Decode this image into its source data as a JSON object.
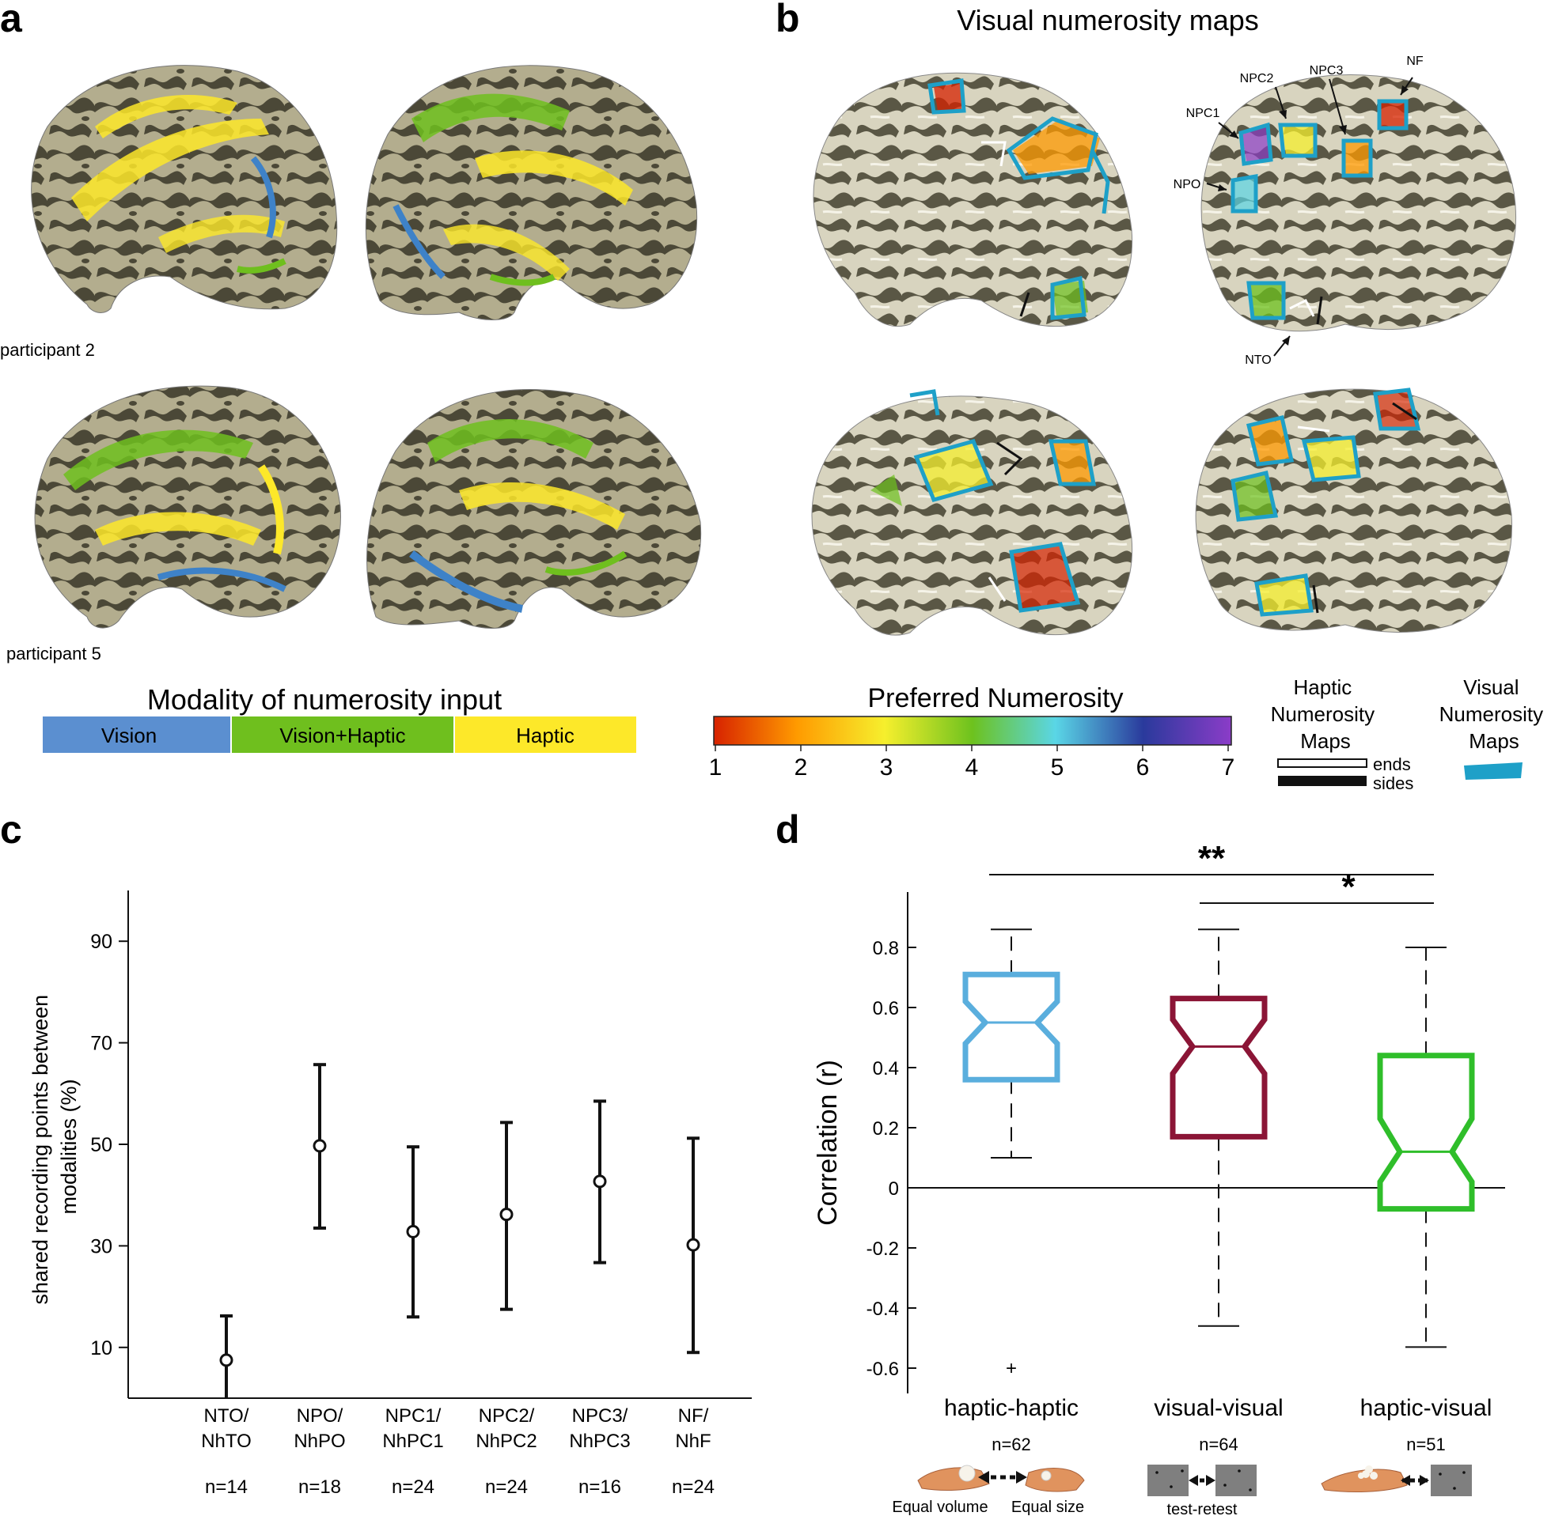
{
  "figure": {
    "panel_a": {
      "label": "a",
      "participants": [
        "participant 2",
        "participant 5"
      ],
      "legend": {
        "title": "Modality of numerosity input",
        "items": [
          {
            "label": "Vision",
            "color": "#5b8fd0"
          },
          {
            "label": "Vision+Haptic",
            "color": "#6fbf1e"
          },
          {
            "label": "Haptic",
            "color": "#fde829"
          }
        ]
      }
    },
    "panel_b": {
      "label": "b",
      "title": "Visual numerosity maps",
      "map_labels": [
        "NPC1",
        "NPC2",
        "NPC3",
        "NF",
        "NPO",
        "NTO"
      ],
      "colorbar": {
        "title": "Preferred Numerosity",
        "ticks": [
          "1",
          "2",
          "3",
          "4",
          "5",
          "6",
          "7"
        ],
        "colors": [
          "#d72200",
          "#ff9a00",
          "#f6ef2d",
          "#6dc21e",
          "#5ad6e6",
          "#2a3a9c",
          "#8b3cc8"
        ]
      },
      "haptic_legend": {
        "title": "Haptic Numerosity Maps",
        "ends": "ends",
        "sides": "sides"
      },
      "visual_legend": {
        "title": "Visual Numerosity Maps",
        "color": "#1ea0c8"
      }
    },
    "panel_c": {
      "label": "c"
    },
    "panel_d": {
      "label": "d"
    }
  },
  "chart_data": [
    {
      "panel": "c",
      "type": "scatter",
      "ylabel": "shared recording points between modalities (%)",
      "xlabel": "",
      "ylim": [
        0,
        100
      ],
      "yticks": [
        "10",
        "30",
        "50",
        "70",
        "90"
      ],
      "categories": [
        "NTO/ NhTO",
        "NPO/ NhPO",
        "NPC1/ NhPC1",
        "NPC2/ NhPC2",
        "NPC3/ NhPC3",
        "NF/ NhF"
      ],
      "cat_lines": [
        [
          "NTO/",
          "NhTO"
        ],
        [
          "NPO/",
          "NhPO"
        ],
        [
          "NPC1/",
          "NhPC1"
        ],
        [
          "NPC2/",
          "NhPC2"
        ],
        [
          "NPC3/",
          "NhPC3"
        ],
        [
          "NF/",
          "NhF"
        ]
      ],
      "n_labels": [
        "n=14",
        "n=18",
        "n=24",
        "n=24",
        "n=16",
        "n=24"
      ],
      "series": [
        {
          "name": "shared",
          "values": [
            7.5,
            49.7,
            32.8,
            36.2,
            42.7,
            30.2
          ],
          "lower": [
            0,
            33.5,
            16,
            17.5,
            26.7,
            9
          ],
          "upper": [
            16.2,
            65.7,
            49.5,
            54.3,
            58.5,
            51.2
          ]
        }
      ]
    },
    {
      "panel": "d",
      "type": "box",
      "ylabel": "Correlation (r)",
      "ylim": [
        -0.7,
        1.0
      ],
      "yticks": [
        "0.8",
        "0.6",
        "0.4",
        "0.2",
        "0",
        "-0.2",
        "-0.4",
        "-0.6"
      ],
      "categories": [
        "haptic-haptic",
        "visual-visual",
        "haptic-visual"
      ],
      "n_labels": [
        "n=62",
        "n=64",
        "n=51"
      ],
      "colors": [
        "#5aaedd",
        "#8b1536",
        "#2fbe2a"
      ],
      "boxes": [
        {
          "whisker_low": 0.1,
          "q1": 0.36,
          "median": 0.55,
          "q3": 0.71,
          "whisker_high": 0.86,
          "notch_low": 0.48,
          "notch_high": 0.62,
          "outliers": [
            -0.6
          ]
        },
        {
          "whisker_low": -0.46,
          "q1": 0.17,
          "median": 0.47,
          "q3": 0.63,
          "whisker_high": 0.86,
          "notch_low": 0.38,
          "notch_high": 0.56,
          "outliers": []
        },
        {
          "whisker_low": -0.53,
          "q1": -0.07,
          "median": 0.12,
          "q3": 0.44,
          "whisker_high": 0.8,
          "notch_low": 0.02,
          "notch_high": 0.23,
          "outliers": []
        }
      ],
      "significance": [
        {
          "pair": [
            0,
            2
          ],
          "label": "**"
        },
        {
          "pair": [
            1,
            2
          ],
          "label": "*"
        }
      ],
      "stimulus_captions": [
        "Equal volume",
        "Equal size",
        "test-retest"
      ]
    }
  ]
}
